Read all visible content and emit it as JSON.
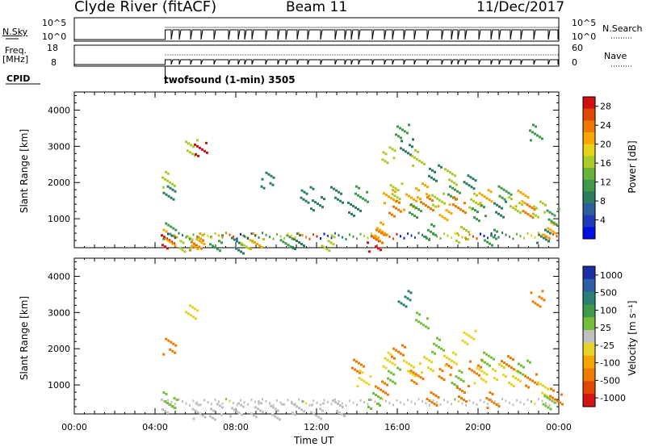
{
  "header": {
    "station": "Clyde River (fitACF)",
    "beam": "Beam 11",
    "date": "11/Dec/2017"
  },
  "strips": {
    "nsky": {
      "label": "N.Sky",
      "top_tick": "10^5",
      "bottom_tick": "10^0"
    },
    "nsearch": {
      "label": "N.Search",
      "top_tick": "10^5",
      "bottom_tick": "10^0"
    },
    "freq": {
      "label_line1": "Freq.",
      "label_line2": "[MHz]",
      "top_tick": "18",
      "bottom_tick": "8"
    },
    "nave": {
      "label": "Nave",
      "top_tick": "60",
      "bottom_tick": "0"
    },
    "cpid": {
      "label": "CPID",
      "value": "twofsound (1-min) 3505"
    }
  },
  "colors": {
    "power_scale": [
      "#0010e0",
      "#1f3cb8",
      "#2c5f9b",
      "#2b7d5d",
      "#3f9a4a",
      "#66b23a",
      "#a9cc2a",
      "#e8d21b",
      "#f7a600",
      "#f07800",
      "#e04800",
      "#d01010"
    ],
    "velocity_scale": [
      "#1a2ea8",
      "#2d5fa6",
      "#2c7f74",
      "#3f9a49",
      "#74bf3a",
      "#c0c0c0",
      "#e8d22a",
      "#f4a600",
      "#ef7a00",
      "#e04a00",
      "#d41313"
    ]
  },
  "chart_data": [
    {
      "type": "heatmap",
      "panel": "power",
      "ylabel": "Slant Range [km]",
      "yticks": [
        "1000",
        "2000",
        "3000",
        "4000"
      ],
      "ylim": [
        200,
        4500
      ],
      "xlim": [
        0,
        24
      ],
      "colorbar_label": "Power [dB]",
      "colorbar_ticks": [
        "4",
        "8",
        "12",
        "16",
        "20",
        "24",
        "28"
      ],
      "colorbar_range": [
        0,
        30
      ],
      "points": [
        [
          4.6,
          350,
          28
        ],
        [
          4.7,
          500,
          20
        ],
        [
          4.65,
          700,
          12
        ],
        [
          4.7,
          1700,
          8
        ],
        [
          4.6,
          2100,
          16
        ],
        [
          5.5,
          350,
          16
        ],
        [
          6.0,
          300,
          24
        ],
        [
          6.1,
          400,
          20
        ],
        [
          5.8,
          3000,
          16
        ],
        [
          6.2,
          2900,
          28
        ],
        [
          7.0,
          350,
          12
        ],
        [
          8.0,
          300,
          8
        ],
        [
          8.5,
          350,
          16
        ],
        [
          9.0,
          400,
          20
        ],
        [
          9.5,
          2100,
          8
        ],
        [
          10.5,
          350,
          12
        ],
        [
          11.0,
          400,
          8
        ],
        [
          11.5,
          1700,
          8
        ],
        [
          12.0,
          1400,
          8
        ],
        [
          12.5,
          350,
          16
        ],
        [
          13.0,
          1700,
          8
        ],
        [
          13.8,
          1250,
          8
        ],
        [
          14.2,
          1700,
          12
        ],
        [
          14.8,
          350,
          28
        ],
        [
          15.0,
          500,
          24
        ],
        [
          15.2,
          700,
          20
        ],
        [
          15.5,
          2800,
          16
        ],
        [
          15.6,
          1600,
          20
        ],
        [
          15.8,
          1300,
          24
        ],
        [
          15.9,
          1800,
          16
        ],
        [
          16.2,
          3400,
          12
        ],
        [
          16.4,
          3000,
          8
        ],
        [
          16.6,
          1500,
          20
        ],
        [
          16.8,
          1200,
          12
        ],
        [
          17.0,
          2700,
          16
        ],
        [
          17.2,
          1800,
          20
        ],
        [
          17.4,
          1400,
          24
        ],
        [
          17.6,
          650,
          12
        ],
        [
          17.8,
          2300,
          8
        ],
        [
          18.0,
          1500,
          16
        ],
        [
          18.3,
          1200,
          20
        ],
        [
          18.6,
          2200,
          16
        ],
        [
          18.8,
          1700,
          12
        ],
        [
          19.0,
          1400,
          24
        ],
        [
          19.2,
          600,
          16
        ],
        [
          19.5,
          2000,
          8
        ],
        [
          19.8,
          1500,
          16
        ],
        [
          20.0,
          1200,
          12
        ],
        [
          20.3,
          1600,
          20
        ],
        [
          20.6,
          500,
          12
        ],
        [
          21.0,
          1300,
          8
        ],
        [
          21.3,
          1700,
          12
        ],
        [
          21.8,
          1400,
          16
        ],
        [
          22.1,
          1600,
          20
        ],
        [
          22.5,
          1200,
          24
        ],
        [
          22.8,
          3400,
          12
        ],
        [
          23.0,
          1300,
          16
        ],
        [
          23.2,
          500,
          8
        ],
        [
          23.5,
          700,
          20
        ],
        [
          23.7,
          1100,
          12
        ]
      ]
    },
    {
      "type": "heatmap",
      "panel": "velocity",
      "ylabel": "Slant Range [km]",
      "yticks": [
        "1000",
        "2000",
        "3000",
        "4000"
      ],
      "ylim": [
        200,
        4500
      ],
      "xlim": [
        0,
        24
      ],
      "xticks": [
        "00:00",
        "04:00",
        "08:00",
        "12:00",
        "16:00",
        "20:00",
        "00:00"
      ],
      "xlabel": "Time UT",
      "colorbar_label": "Velocity [m s⁻¹]",
      "colorbar_ticks": [
        "1000",
        "500",
        "100",
        "25",
        "-25",
        "-100",
        "-500",
        "-1000"
      ],
      "colorbar_range": [
        -1000,
        1000
      ],
      "points": [
        [
          4.6,
          400,
          25
        ],
        [
          4.7,
          600,
          100
        ],
        [
          4.65,
          2100,
          -500
        ],
        [
          5.8,
          3000,
          -100
        ],
        [
          6.1,
          300,
          -25
        ],
        [
          7.0,
          300,
          25
        ],
        [
          8.0,
          300,
          -25
        ],
        [
          9.0,
          350,
          25
        ],
        [
          10.0,
          300,
          -25
        ],
        [
          11.0,
          350,
          25
        ],
        [
          12.0,
          300,
          -25
        ],
        [
          13.0,
          400,
          25
        ],
        [
          14.0,
          1500,
          -500
        ],
        [
          14.3,
          1200,
          -100
        ],
        [
          14.8,
          600,
          100
        ],
        [
          15.2,
          900,
          -500
        ],
        [
          15.5,
          1700,
          -100
        ],
        [
          15.8,
          1300,
          100
        ],
        [
          16.0,
          1900,
          -500
        ],
        [
          16.3,
          3400,
          500
        ],
        [
          16.6,
          1500,
          -100
        ],
        [
          16.9,
          1200,
          -500
        ],
        [
          17.2,
          2800,
          100
        ],
        [
          17.4,
          1600,
          -100
        ],
        [
          17.7,
          600,
          -500
        ],
        [
          18.0,
          2100,
          100
        ],
        [
          18.3,
          1400,
          -500
        ],
        [
          18.6,
          1700,
          -100
        ],
        [
          18.9,
          1200,
          100
        ],
        [
          19.2,
          800,
          -500
        ],
        [
          19.5,
          2300,
          -100
        ],
        [
          19.8,
          1500,
          -500
        ],
        [
          20.1,
          1300,
          -100
        ],
        [
          20.4,
          1700,
          100
        ],
        [
          20.7,
          600,
          -500
        ],
        [
          21.0,
          1400,
          -100
        ],
        [
          21.4,
          1600,
          -500
        ],
        [
          21.8,
          1200,
          -100
        ],
        [
          22.2,
          1500,
          100
        ],
        [
          22.6,
          1100,
          -500
        ],
        [
          22.9,
          3400,
          -500
        ],
        [
          23.2,
          900,
          -100
        ],
        [
          23.5,
          500,
          100
        ],
        [
          23.8,
          700,
          -500
        ]
      ]
    }
  ]
}
